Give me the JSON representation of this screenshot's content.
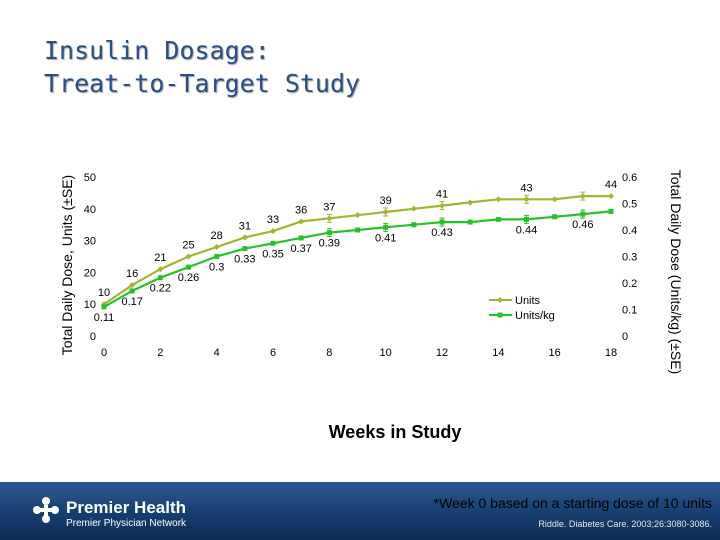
{
  "slide": {
    "title_line1": "Insulin Dosage:",
    "title_line2": "Treat-to-Target Study"
  },
  "chart_data": {
    "type": "line",
    "xlabel": "Weeks in Study",
    "ylabel_left": "Total Daily Dose, Units (±SE)",
    "ylabel_right": "Total Daily Dose (Units/kg) (±SE)",
    "x_ticks": [
      0,
      2,
      4,
      6,
      8,
      10,
      12,
      14,
      16,
      18
    ],
    "x_range": [
      0,
      18
    ],
    "y_left_ticks": [
      0,
      10,
      20,
      30,
      40,
      50
    ],
    "y_left_range": [
      0,
      50
    ],
    "y_right_ticks": [
      "0",
      "0.1",
      "0.2",
      "0.3",
      "0.4",
      "0.5",
      "0.6"
    ],
    "y_right_range": [
      0,
      0.6
    ],
    "grid": false,
    "legend_position": "bottom-right",
    "series": [
      {
        "name": "Units",
        "axis": "left",
        "color": "#a6b232",
        "x": [
          0,
          1,
          2,
          3,
          4,
          5,
          6,
          7,
          8,
          9,
          10,
          11,
          12,
          13,
          14,
          15,
          16,
          17,
          18
        ],
        "values": [
          10,
          16,
          21,
          25,
          28,
          31,
          33,
          36,
          37,
          38,
          39,
          40,
          41,
          42,
          43,
          43,
          43,
          44,
          44
        ],
        "labels": [
          {
            "x": 0,
            "text": "10"
          },
          {
            "x": 1,
            "text": "16"
          },
          {
            "x": 2,
            "text": "21"
          },
          {
            "x": 3,
            "text": "25"
          },
          {
            "x": 4,
            "text": "28"
          },
          {
            "x": 5,
            "text": "31"
          },
          {
            "x": 6,
            "text": "33"
          },
          {
            "x": 7,
            "text": "36"
          },
          {
            "x": 8,
            "text": "37"
          },
          {
            "x": 10,
            "text": "39"
          },
          {
            "x": 12,
            "text": "41"
          },
          {
            "x": 15,
            "text": "43"
          },
          {
            "x": 18,
            "text": "44"
          }
        ]
      },
      {
        "name": "Units/kg",
        "axis": "right",
        "color": "#2ac02a",
        "x": [
          0,
          1,
          2,
          3,
          4,
          5,
          6,
          7,
          8,
          9,
          10,
          11,
          12,
          13,
          14,
          15,
          16,
          17,
          18
        ],
        "values": [
          0.11,
          0.17,
          0.22,
          0.26,
          0.3,
          0.33,
          0.35,
          0.37,
          0.39,
          0.4,
          0.41,
          0.42,
          0.43,
          0.43,
          0.44,
          0.44,
          0.45,
          0.46,
          0.47
        ],
        "labels": [
          {
            "x": 0,
            "text": "0.11"
          },
          {
            "x": 1,
            "text": "0.17"
          },
          {
            "x": 2,
            "text": "0.22"
          },
          {
            "x": 3,
            "text": "0.26"
          },
          {
            "x": 4,
            "text": "0.3"
          },
          {
            "x": 5,
            "text": "0.33"
          },
          {
            "x": 6,
            "text": "0.35"
          },
          {
            "x": 7,
            "text": "0.37"
          },
          {
            "x": 8,
            "text": "0.39"
          },
          {
            "x": 10,
            "text": "0.41"
          },
          {
            "x": 12,
            "text": "0.43"
          },
          {
            "x": 15,
            "text": "0.44"
          },
          {
            "x": 17,
            "text": "0.46"
          }
        ]
      }
    ]
  },
  "footer": {
    "logo_name": "Premier Health",
    "logo_subtitle": "Premier Physician Network",
    "footnote": "*Week 0 based on a starting dose of 10 units",
    "citation": "Riddle. Diabetes Care. 2003;26:3080-3086."
  },
  "colors": {
    "title": "#2a4e86",
    "units_line": "#a6b232",
    "unitskg_line": "#2ac02a",
    "footer_bg": "#173d6f"
  }
}
